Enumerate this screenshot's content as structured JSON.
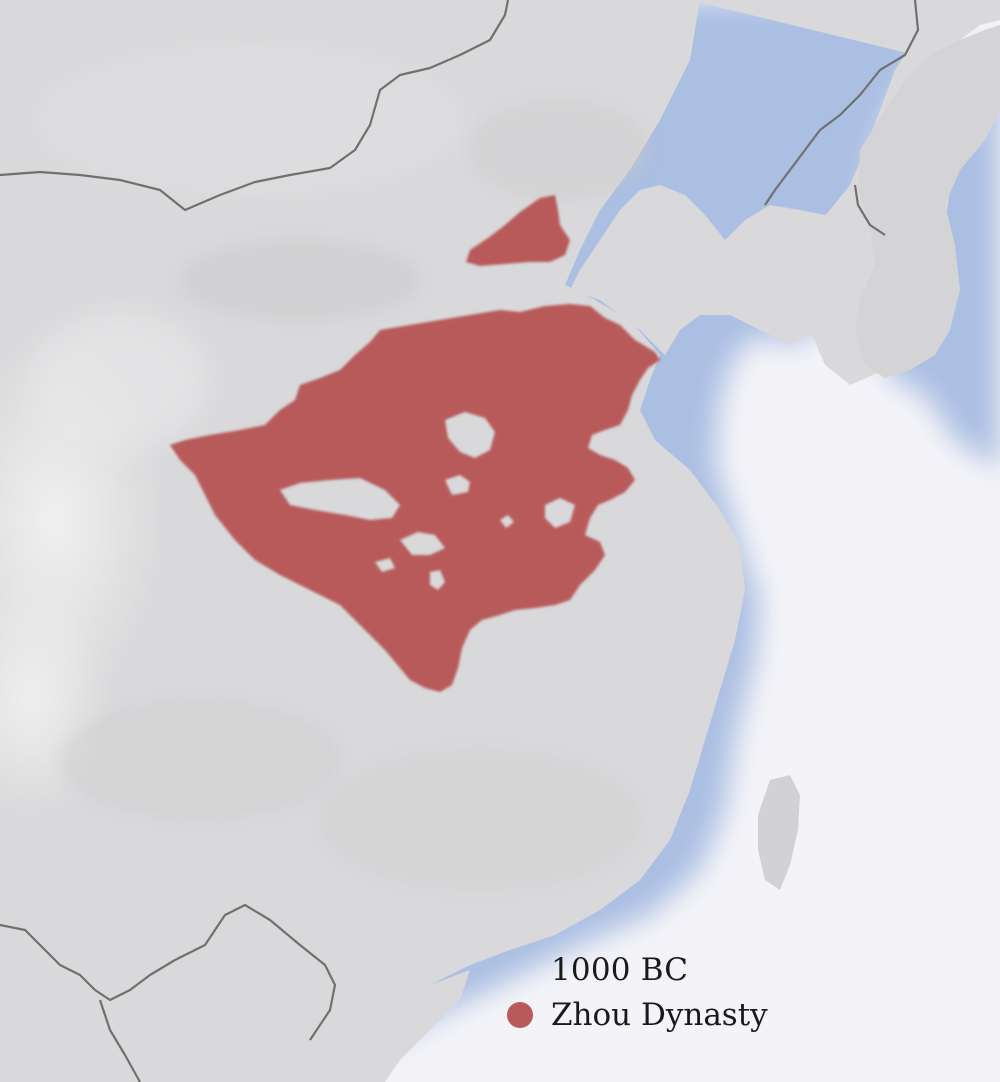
{
  "map": {
    "colors": {
      "land": "#d9d9db",
      "land_light": "#e6e6e8",
      "sea_deep": "#8fa8d6",
      "sea_open": "#f4f4f8",
      "border": "#6e6e6e",
      "territory": "#b85a5a"
    },
    "layers": [
      "land",
      "sea-gradient",
      "country-borders",
      "territory"
    ]
  },
  "legend": {
    "year": "1000 BC",
    "items": [
      {
        "label": "Zhou Dynasty",
        "color": "#b85a5a"
      }
    ]
  }
}
